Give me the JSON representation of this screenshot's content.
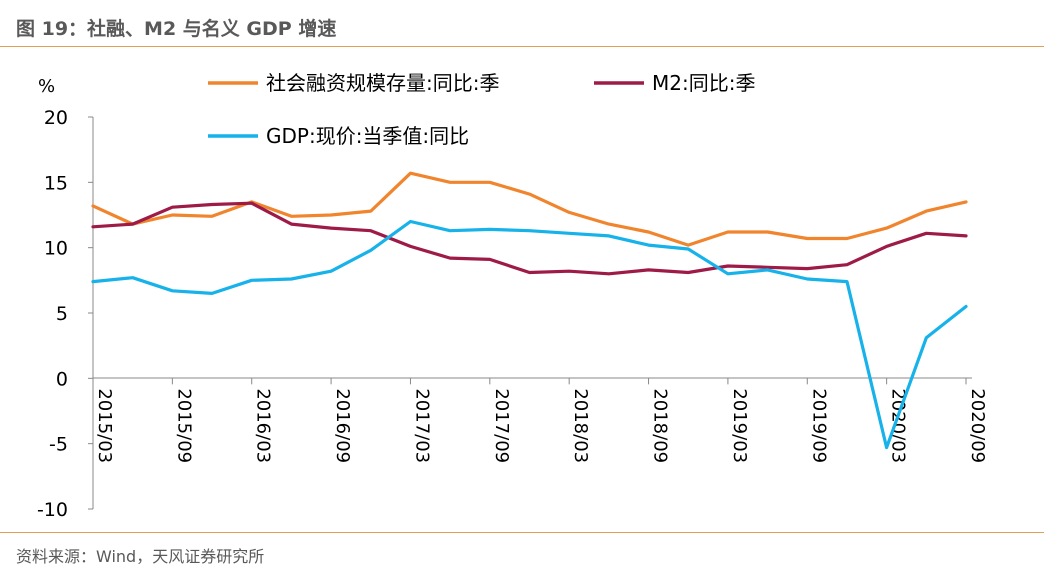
{
  "header": {
    "title": "图 19：社融、M2 与名义 GDP 增速"
  },
  "footer": {
    "source": "资料来源：Wind，天风证券研究所"
  },
  "chart_data": {
    "type": "line",
    "unit": "%",
    "ylim": [
      -10,
      20
    ],
    "yticks": [
      20,
      15,
      10,
      5,
      0,
      -5,
      -10
    ],
    "x": [
      "2015/03",
      "2015/06",
      "2015/09",
      "2015/12",
      "2016/03",
      "2016/06",
      "2016/09",
      "2016/12",
      "2017/03",
      "2017/06",
      "2017/09",
      "2017/12",
      "2018/03",
      "2018/06",
      "2018/09",
      "2018/12",
      "2019/03",
      "2019/06",
      "2019/09",
      "2019/12",
      "2020/03",
      "2020/06",
      "2020/09"
    ],
    "xtick_labels": [
      "2015/03",
      "2015/09",
      "2016/03",
      "2016/09",
      "2017/03",
      "2017/09",
      "2018/03",
      "2018/09",
      "2019/03",
      "2019/09",
      "2020/03",
      "2020/09"
    ],
    "series": [
      {
        "name": "社会融资规模存量:同比:季",
        "color": "#f0852d",
        "values": [
          13.2,
          11.8,
          12.5,
          12.4,
          13.5,
          12.4,
          12.5,
          12.8,
          15.7,
          15.0,
          15.0,
          14.1,
          12.7,
          11.8,
          11.2,
          10.2,
          11.2,
          11.2,
          10.7,
          10.7,
          11.5,
          12.8,
          13.5
        ]
      },
      {
        "name": "M2:同比:季",
        "color": "#9e1b47",
        "values": [
          11.6,
          11.8,
          13.1,
          13.3,
          13.4,
          11.8,
          11.5,
          11.3,
          10.1,
          9.2,
          9.1,
          8.1,
          8.2,
          8.0,
          8.3,
          8.1,
          8.6,
          8.5,
          8.4,
          8.7,
          10.1,
          11.1,
          10.9
        ]
      },
      {
        "name": "GDP:现价:当季值:同比",
        "color": "#17b2ea",
        "values": [
          7.4,
          7.7,
          6.7,
          6.5,
          7.5,
          7.6,
          8.2,
          9.8,
          12.0,
          11.3,
          11.4,
          11.3,
          11.1,
          10.9,
          10.2,
          9.9,
          8.0,
          8.3,
          7.6,
          7.4,
          -5.3,
          3.1,
          5.5
        ]
      }
    ],
    "legend_position": "top",
    "grid": false
  }
}
